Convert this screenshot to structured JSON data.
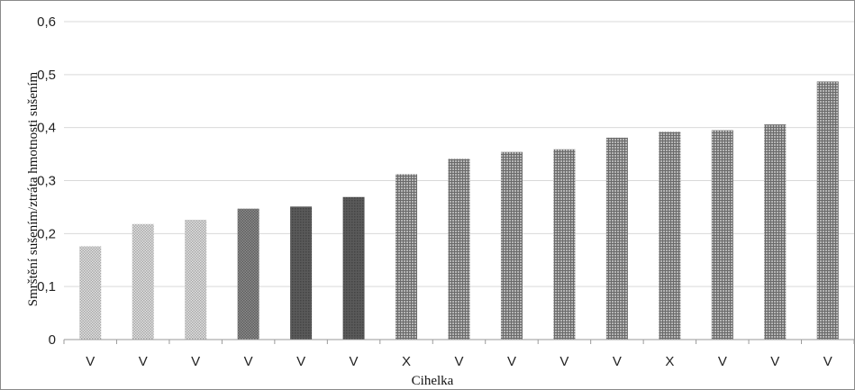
{
  "chart_data": {
    "type": "bar",
    "title": "",
    "xlabel": "Cihelka",
    "ylabel": "Smrštění sušením/ztráta hmotnosti sušením",
    "categories": [
      "V",
      "V",
      "V",
      "V",
      "V",
      "V",
      "X",
      "V",
      "V",
      "V",
      "V",
      "X",
      "V",
      "V",
      "V"
    ],
    "values": [
      0.176,
      0.218,
      0.226,
      0.247,
      0.251,
      0.269,
      0.312,
      0.341,
      0.354,
      0.359,
      0.381,
      0.392,
      0.395,
      0.406,
      0.487
    ],
    "bar_styles": [
      "light",
      "light",
      "light",
      "medium",
      "dark",
      "dark",
      "grid",
      "grid",
      "grid",
      "grid",
      "grid",
      "grid",
      "grid",
      "grid",
      "grid"
    ],
    "ylim": [
      0,
      0.6
    ],
    "yticks": [
      0,
      0.1,
      0.2,
      0.3,
      0.4,
      0.5,
      0.6
    ],
    "ytick_labels": [
      "0",
      "0,1",
      "0,2",
      "0,3",
      "0,4",
      "0,5",
      "0,6"
    ],
    "grid": true,
    "legend": "none",
    "colors": {
      "light": "#c4c4c4",
      "medium": "#7a7a7a",
      "dark": "#555555",
      "grid": "#8e8e8e",
      "gridline": "#d9d9d9",
      "axis": "#9a9a9a",
      "frame": "#8a8a8a"
    }
  }
}
